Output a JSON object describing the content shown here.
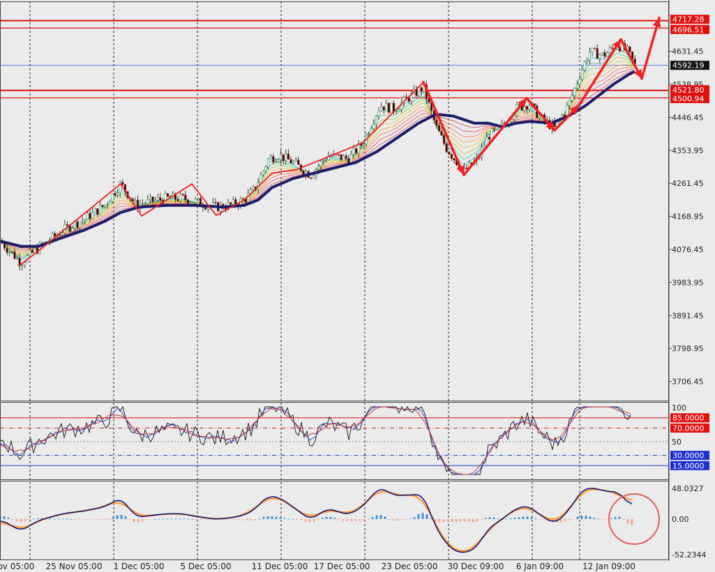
{
  "chart_data": {
    "type": "candlestick",
    "title": "",
    "xlabel": "",
    "ylabel": "",
    "colors": {
      "background": "#ebebeb",
      "bull_candle": "#2e8b57",
      "bear_candle": "#cc1f1f",
      "main_ma": "#1c1c6b",
      "pattern": "#ee2222",
      "level_line": "#e01010",
      "current_price_line": "#3050e0",
      "macd_line": "#141478",
      "signal_line": "#ff9a2e",
      "hist_pos": "#3b8fd8",
      "hist_neg": "#f2a48b"
    },
    "main_panel": {
      "price_axis_labels": [
        "4631.45",
        "4538.95",
        "4446.45",
        "4353.95",
        "4261.45",
        "4168.95",
        "4076.45",
        "3983.95",
        "3891.45",
        "3798.95",
        "3706.45"
      ],
      "ylim": [
        3690,
        4740
      ],
      "resistance_levels": [
        {
          "value": 4717.28,
          "label": "4717.28"
        },
        {
          "value": 4696.51,
          "label": "4696.51"
        },
        {
          "value": 4521.8,
          "label": "4521.80"
        },
        {
          "value": 4500.94,
          "label": "4500.94"
        }
      ],
      "current_price": {
        "value": 4592.19,
        "label": "4592.19"
      },
      "price_path": [
        [
          0,
          4100
        ],
        [
          30,
          4040
        ],
        [
          55,
          4080
        ],
        [
          90,
          4130
        ],
        [
          120,
          4160
        ],
        [
          150,
          4200
        ],
        [
          173,
          4260
        ],
        [
          195,
          4200
        ],
        [
          215,
          4210
        ],
        [
          240,
          4220
        ],
        [
          262,
          4220
        ],
        [
          290,
          4205
        ],
        [
          310,
          4195
        ],
        [
          330,
          4200
        ],
        [
          350,
          4215
        ],
        [
          365,
          4245
        ],
        [
          385,
          4330
        ],
        [
          400,
          4340
        ],
        [
          420,
          4320
        ],
        [
          445,
          4285
        ],
        [
          470,
          4340
        ],
        [
          500,
          4330
        ],
        [
          520,
          4375
        ],
        [
          545,
          4480
        ],
        [
          565,
          4470
        ],
        [
          585,
          4500
        ],
        [
          607,
          4530
        ],
        [
          625,
          4420
        ],
        [
          640,
          4360
        ],
        [
          665,
          4295
        ],
        [
          685,
          4330
        ],
        [
          700,
          4395
        ],
        [
          720,
          4420
        ],
        [
          740,
          4470
        ],
        [
          758,
          4485
        ],
        [
          775,
          4445
        ],
        [
          795,
          4415
        ],
        [
          815,
          4480
        ],
        [
          832,
          4570
        ],
        [
          845,
          4630
        ],
        [
          865,
          4620
        ],
        [
          885,
          4650
        ],
        [
          900,
          4630
        ],
        [
          910,
          4592
        ]
      ],
      "ma_path": [
        [
          0,
          4100
        ],
        [
          30,
          4085
        ],
        [
          55,
          4085
        ],
        [
          90,
          4110
        ],
        [
          120,
          4130
        ],
        [
          150,
          4155
        ],
        [
          173,
          4180
        ],
        [
          200,
          4195
        ],
        [
          240,
          4200
        ],
        [
          280,
          4200
        ],
        [
          320,
          4195
        ],
        [
          350,
          4200
        ],
        [
          370,
          4215
        ],
        [
          390,
          4250
        ],
        [
          420,
          4275
        ],
        [
          450,
          4290
        ],
        [
          480,
          4305
        ],
        [
          510,
          4320
        ],
        [
          540,
          4350
        ],
        [
          570,
          4390
        ],
        [
          600,
          4430
        ],
        [
          625,
          4455
        ],
        [
          650,
          4450
        ],
        [
          680,
          4430
        ],
        [
          700,
          4430
        ],
        [
          720,
          4420
        ],
        [
          740,
          4430
        ],
        [
          760,
          4435
        ],
        [
          790,
          4430
        ],
        [
          815,
          4450
        ],
        [
          840,
          4480
        ],
        [
          860,
          4510
        ],
        [
          880,
          4540
        ],
        [
          900,
          4565
        ],
        [
          910,
          4575
        ]
      ],
      "pattern_zigzag": [
        [
          27,
          4030
        ],
        [
          57,
          4075
        ],
        [
          173,
          4260
        ],
        [
          203,
          4170
        ],
        [
          275,
          4260
        ],
        [
          310,
          4172
        ],
        [
          350,
          4215
        ],
        [
          390,
          4290
        ],
        [
          425,
          4300
        ],
        [
          520,
          4375
        ],
        [
          607,
          4545
        ],
        [
          665,
          4285
        ],
        [
          755,
          4500
        ],
        [
          795,
          4410
        ],
        [
          830,
          4480
        ],
        [
          890,
          4665
        ],
        [
          920,
          4555
        ],
        [
          945,
          4725
        ]
      ]
    },
    "oscillator_panel": {
      "axis_labels": [
        "100",
        "50"
      ],
      "levels": [
        {
          "value": 85,
          "label": "85.0000"
        },
        {
          "value": 70,
          "label": "70.0000"
        },
        {
          "value": 30,
          "label": "30.0000"
        },
        {
          "value": 15,
          "label": "15.0000"
        }
      ],
      "ylim": [
        -3,
        103
      ]
    },
    "macd_panel": {
      "axis_labels": [
        "48.0327",
        "0.00",
        "-52.2344"
      ],
      "ylim": [
        -58,
        55
      ]
    },
    "x_tick_labels": [
      "ov 05:00",
      "25 Nov 05:00",
      "1 Dec 05:00",
      "5 Dec 05:00",
      "11 Dec 05:00",
      "17 Dec 05:00",
      "23 Dec 05:00",
      "30 Dec 09:00",
      "6 Jan 09:00",
      "12 Jan 09:00"
    ],
    "annotations": [
      "red circle around latest MACD values"
    ]
  }
}
